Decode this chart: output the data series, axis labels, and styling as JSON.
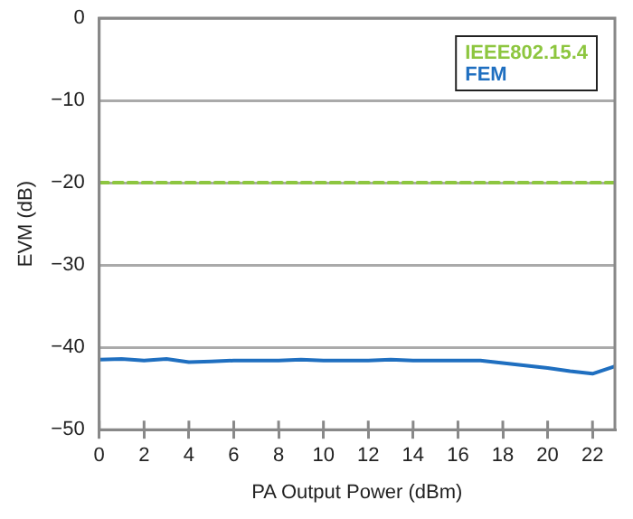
{
  "chart_data": {
    "type": "line",
    "xlabel": "PA Output Power (dBm)",
    "ylabel": "EVM (dB)",
    "xlim": [
      0,
      23
    ],
    "xticks": [
      0,
      2,
      4,
      6,
      8,
      10,
      12,
      14,
      16,
      18,
      20,
      22
    ],
    "ylim": [
      -50,
      0
    ],
    "yticks": [
      {
        "value": -50,
        "label": "−50"
      },
      {
        "value": -40,
        "label": "−40"
      },
      {
        "value": -30,
        "label": "−30"
      },
      {
        "value": -20,
        "label": "−20"
      },
      {
        "value": -10,
        "label": "−10"
      },
      0
    ],
    "grid": "y",
    "legend": "top right",
    "marker": "none",
    "series": [
      {
        "name": "IEEE802.15.4",
        "color": "#8dc63f",
        "line_style": "dashed",
        "x": [
          0,
          23
        ],
        "values": [
          -20,
          -20
        ]
      },
      {
        "name": "FEM",
        "color": "#1f6fc0",
        "line_style": "solid",
        "x": [
          0,
          1,
          2,
          3,
          4,
          5,
          6,
          7,
          8,
          9,
          10,
          11,
          12,
          13,
          14,
          15,
          16,
          17,
          18,
          19,
          20,
          21,
          22,
          23
        ],
        "values": [
          -41.5,
          -41.4,
          -41.6,
          -41.4,
          -41.8,
          -41.7,
          -41.6,
          -41.6,
          -41.6,
          -41.5,
          -41.6,
          -41.6,
          -41.6,
          -41.5,
          -41.6,
          -41.6,
          -41.6,
          -41.6,
          -41.9,
          -42.2,
          -42.5,
          -42.9,
          -43.2,
          -42.3
        ]
      }
    ]
  }
}
